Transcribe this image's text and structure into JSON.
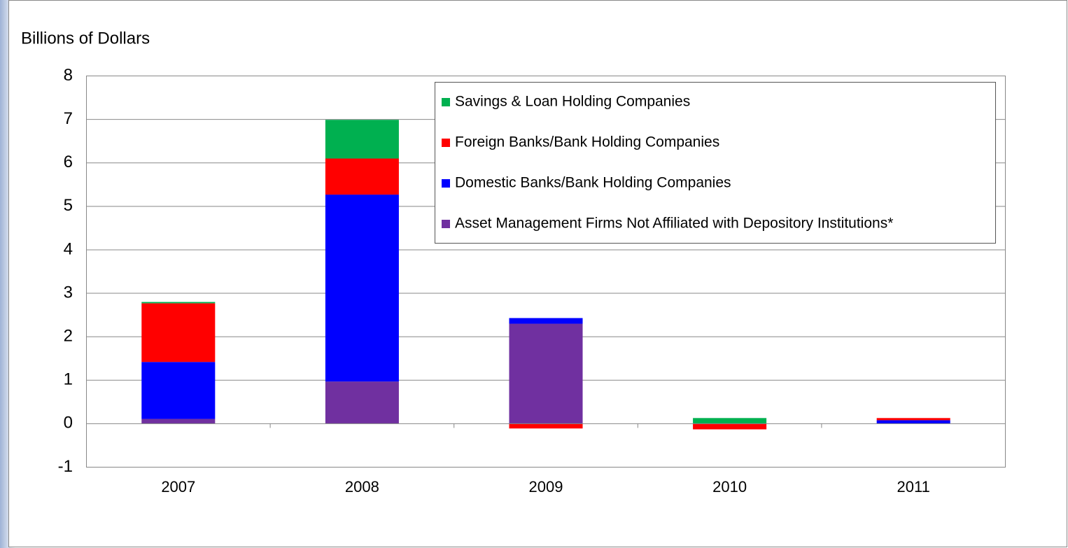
{
  "chart_data": {
    "type": "stacked-bar",
    "y_label": "Billions of Dollars",
    "categories": [
      "2007",
      "2008",
      "2009",
      "2010",
      "2011"
    ],
    "series": [
      {
        "name": "Asset Management Firms Not Affiliated with Depository Institutions*",
        "color": "#7030a0",
        "values": [
          0.11,
          0.97,
          2.3,
          0,
          0
        ]
      },
      {
        "name": "Domestic Banks/Bank Holding Companies",
        "color": "#0000ff",
        "values": [
          1.31,
          4.3,
          0.13,
          0,
          0.08
        ]
      },
      {
        "name": "Foreign Banks/Bank Holding Companies",
        "color": "#ff0000",
        "values": [
          1.35,
          0.83,
          -0.11,
          -0.13,
          0.05
        ]
      },
      {
        "name": "Savings & Loan Holding Companies",
        "color": "#00b050",
        "values": [
          0.03,
          0.89,
          0,
          0.13,
          0
        ]
      }
    ],
    "ylim": [
      -1,
      8
    ],
    "yticks": [
      -1,
      0,
      1,
      2,
      3,
      4,
      5,
      6,
      7,
      8
    ],
    "grid": true
  }
}
